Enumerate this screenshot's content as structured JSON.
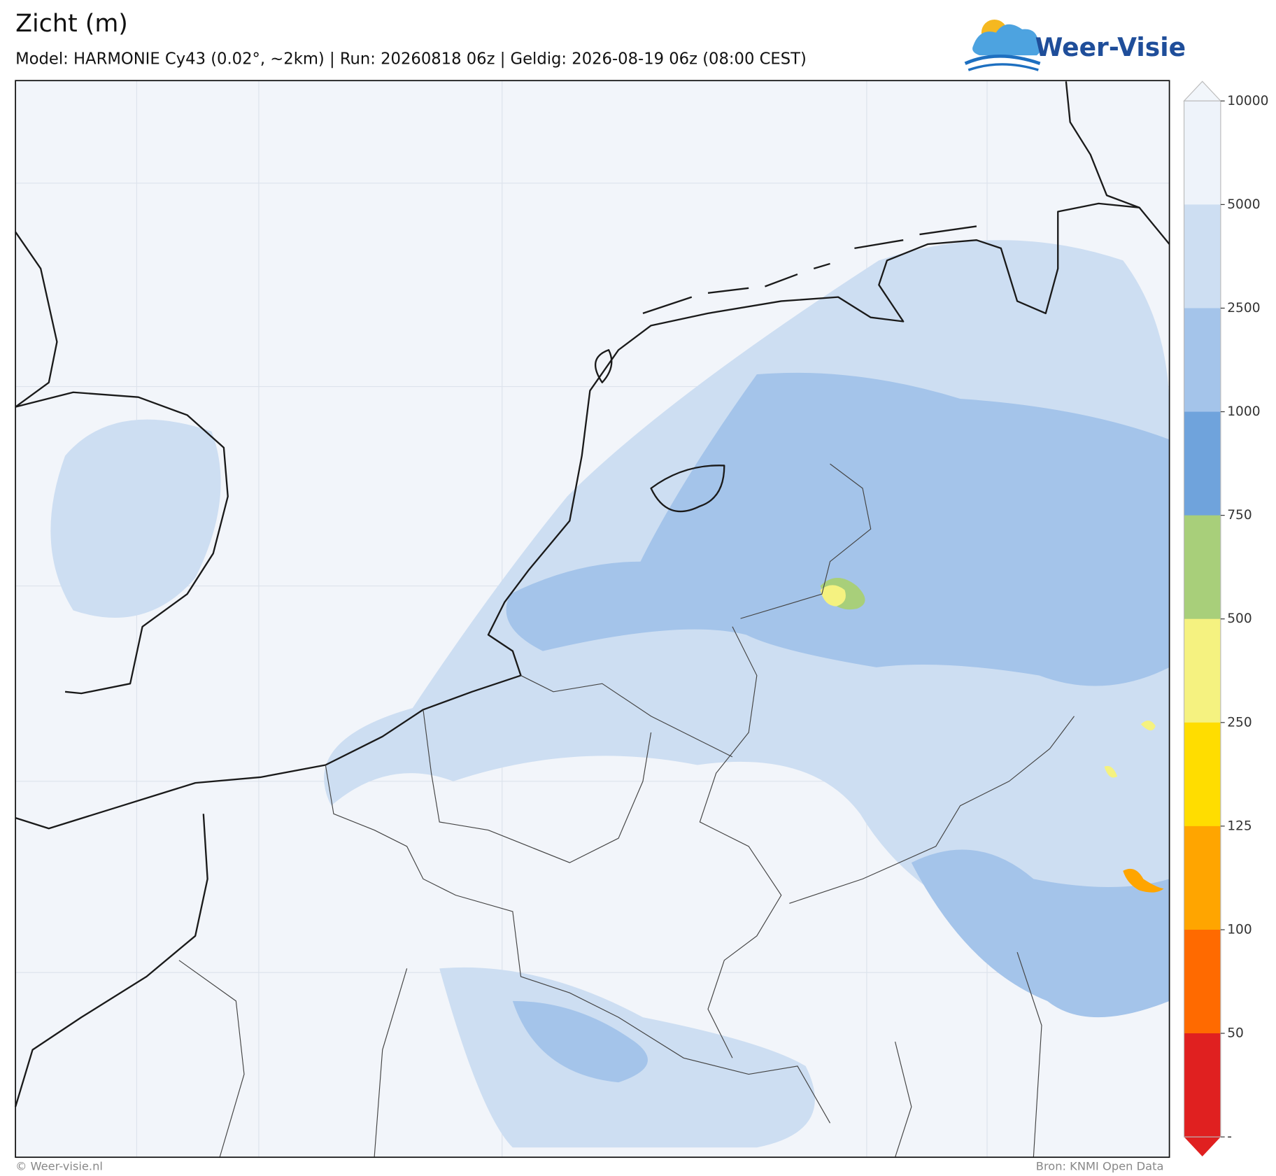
{
  "header": {
    "title": "Zicht (m)",
    "subtitle": "Model: HARMONIE Cy43 (0.02°, ~2km)  |  Run: 20260818 06z  |  Geldig: 2026-08-19 06z (08:00 CEST)"
  },
  "logo": {
    "text": "Weer-Visie"
  },
  "colorbar": {
    "ticks": [
      10000,
      5000,
      2500,
      1000,
      750,
      500,
      250,
      125,
      100,
      50
    ],
    "bottom_label": "-",
    "colors": [
      "#eef3fa",
      "#cddef2",
      "#a4c4ea",
      "#6fa3dc",
      "#a8cf7a",
      "#f5f280",
      "#ffdd00",
      "#ffa500",
      "#ff6a00",
      "#e02020"
    ],
    "over_color": "#f2f6fb",
    "under_color": "#e02020"
  },
  "footer": {
    "left": "© Weer-visie.nl",
    "right": "Bron: KNMI Open Data"
  }
}
